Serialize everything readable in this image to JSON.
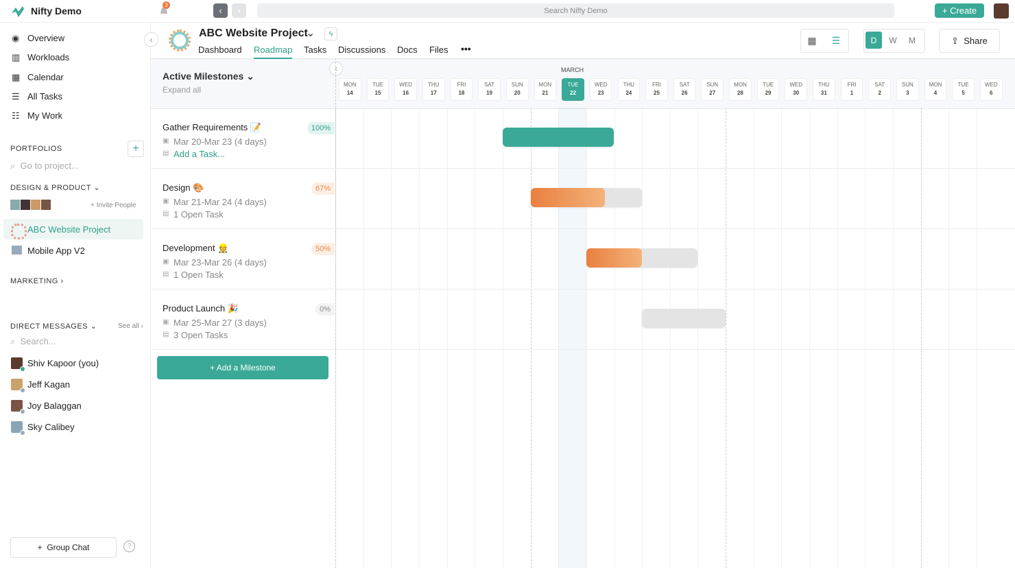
{
  "topbar": {
    "app_name": "Nifty Demo",
    "notifications": 3,
    "search": "Search Nifty Demo",
    "create": "Create"
  },
  "sidebar": {
    "nav": [
      "Overview",
      "Workloads",
      "Calendar",
      "All Tasks",
      "My Work"
    ],
    "portfolios": {
      "title": "PORTFOLIOS",
      "search": "Go to project..."
    },
    "groups": [
      {
        "name": "DESIGN & PRODUCT",
        "invite": "+ Invite People",
        "projects": [
          "ABC Website Project",
          "Mobile App V2"
        ]
      },
      {
        "name": "MARKETING"
      }
    ],
    "direct_messages": {
      "title": "DIRECT MESSAGES",
      "see_all": "See all",
      "search": "Search...",
      "people": [
        "Shiv Kapoor (you)",
        "Jeff Kagan",
        "Joy Balaggan",
        "Sky Calibey"
      ]
    },
    "group_chat": "Group Chat"
  },
  "project": {
    "title": "ABC Website Project",
    "tabs": [
      "Dashboard",
      "Roadmap",
      "Tasks",
      "Discussions",
      "Docs",
      "Files"
    ],
    "views": [
      "D",
      "W",
      "M"
    ],
    "share": "Share"
  },
  "roadmap": {
    "title": "Active Milestones",
    "expand": "Expand all",
    "month": "MARCH",
    "days": [
      {
        "weekday": "MON",
        "day": 14
      },
      {
        "weekday": "TUE",
        "day": 15
      },
      {
        "weekday": "WED",
        "day": 16
      },
      {
        "weekday": "THU",
        "day": 17
      },
      {
        "weekday": "FRI",
        "day": 18
      },
      {
        "weekday": "SAT",
        "day": 19
      },
      {
        "weekday": "SUN",
        "day": 20
      },
      {
        "weekday": "MON",
        "day": 21
      },
      {
        "weekday": "TUE",
        "day": 22
      },
      {
        "weekday": "WED",
        "day": 23
      },
      {
        "weekday": "THU",
        "day": 24
      },
      {
        "weekday": "FRI",
        "day": 25
      },
      {
        "weekday": "SAT",
        "day": 26
      },
      {
        "weekday": "SUN",
        "day": 27
      },
      {
        "weekday": "MON",
        "day": 28
      },
      {
        "weekday": "TUE",
        "day": 29
      },
      {
        "weekday": "WED",
        "day": 30
      },
      {
        "weekday": "THU",
        "day": 31
      },
      {
        "weekday": "FRI",
        "day": 1
      },
      {
        "weekday": "SAT",
        "day": 2
      },
      {
        "weekday": "SUN",
        "day": 3
      },
      {
        "weekday": "MON",
        "day": 4
      },
      {
        "weekday": "TUE",
        "day": 5
      },
      {
        "weekday": "WED",
        "day": 6
      }
    ],
    "milestones": [
      {
        "name": "Gather Requirements 📝",
        "dates": "Mar 20-Mar 23 (4 days)",
        "progress": {
          "value": 100,
          "label": "100%"
        },
        "tasks": "Add a Task...",
        "start": 20,
        "end": 23
      },
      {
        "name": "Design 🎨",
        "dates": "Mar 21-Mar 24 (4 days)",
        "progress": {
          "value": 67,
          "label": "67%"
        },
        "tasks": "1 Open Task",
        "start": 21,
        "end": 24
      },
      {
        "name": "Development 👷",
        "dates": "Mar 23-Mar 26 (4 days)",
        "progress": {
          "value": 50,
          "label": "50%"
        },
        "tasks": "1 Open Task",
        "start": 23,
        "end": 26
      },
      {
        "name": "Product Launch 🎉",
        "dates": "Mar 25-Mar 27 (3 days)",
        "progress": {
          "value": 0,
          "label": "0%"
        },
        "tasks": "3 Open Tasks",
        "start": 25,
        "end": 27
      }
    ],
    "add_milestone": "+ Add a Milestone"
  }
}
